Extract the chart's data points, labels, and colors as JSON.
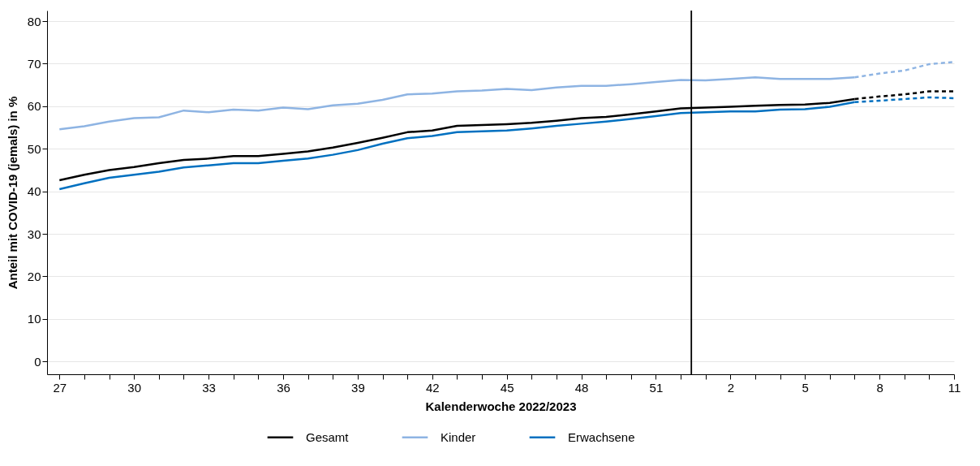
{
  "chart_data": {
    "type": "line",
    "xlabel": "Kalenderwoche 2022/2023",
    "ylabel": "Anteil mit COVID-19 (jemals) in %",
    "x": [
      "2022-07-07",
      "2022-07-14",
      "2022-07-21",
      "2022-07-28",
      "2022-08-04",
      "2022-08-11",
      "2022-08-18",
      "2022-08-25",
      "2022-09-01",
      "2022-09-08",
      "2022-09-15",
      "2022-09-22",
      "2022-09-29",
      "2022-10-06",
      "2022-10-13",
      "2022-10-20",
      "2022-10-27",
      "2022-11-03",
      "2022-11-10",
      "2022-11-17",
      "2022-11-24",
      "2022-12-01",
      "2022-12-08",
      "2022-12-15",
      "2022-12-22",
      "2022-12-29",
      "2023-01-05",
      "2023-01-12",
      "2023-01-19",
      "2023-01-26",
      "2023-02-02",
      "2023-02-09",
      "2023-02-16",
      "2023-02-23",
      "2023-03-02",
      "2023-03-09",
      "2023-03-16"
    ],
    "series": [
      {
        "name": "Gesamt",
        "color": "#000000",
        "line_style": "solid",
        "values": [
          42.6,
          43.9,
          45.0,
          45.7,
          46.6,
          47.4,
          47.7,
          48.3,
          48.3,
          48.8,
          49.4,
          50.3,
          51.4,
          52.6,
          53.9,
          54.3,
          55.4,
          55.6,
          55.8,
          56.1,
          56.6,
          57.2,
          57.5,
          58.1,
          58.8,
          59.5,
          59.7,
          59.9,
          60.1,
          60.3,
          60.4,
          60.8,
          61.7,
          null,
          null,
          null,
          null
        ]
      },
      {
        "name": "Kinder",
        "color": "#8eb4e3",
        "line_style": "solid",
        "values": [
          54.6,
          55.3,
          56.4,
          57.2,
          57.4,
          59.0,
          58.6,
          59.2,
          59.0,
          59.7,
          59.3,
          60.2,
          60.6,
          61.5,
          62.8,
          63.0,
          63.5,
          63.7,
          64.1,
          63.8,
          64.4,
          64.8,
          64.8,
          65.2,
          65.7,
          66.2,
          66.1,
          66.4,
          66.8,
          66.4,
          66.4,
          66.4,
          66.8,
          null,
          null,
          null,
          null
        ]
      },
      {
        "name": "Erwachsene",
        "color": "#0070c0",
        "line_style": "solid",
        "values": [
          40.5,
          41.9,
          43.2,
          43.9,
          44.6,
          45.6,
          46.1,
          46.6,
          46.6,
          47.2,
          47.7,
          48.6,
          49.7,
          51.2,
          52.5,
          53.0,
          53.9,
          54.1,
          54.3,
          54.8,
          55.4,
          55.9,
          56.4,
          57.0,
          57.7,
          58.4,
          58.6,
          58.8,
          58.8,
          59.2,
          59.3,
          59.9,
          61.0,
          null,
          null,
          null,
          null
        ]
      },
      {
        "color": "#000000",
        "line_style": "dashed",
        "values": [
          null,
          null,
          null,
          null,
          null,
          null,
          null,
          null,
          null,
          null,
          null,
          null,
          null,
          null,
          null,
          null,
          null,
          null,
          null,
          null,
          null,
          null,
          null,
          null,
          null,
          null,
          null,
          null,
          null,
          null,
          null,
          null,
          61.7,
          62.3,
          62.8,
          63.5,
          63.5
        ]
      },
      {
        "color": "#8eb4e3",
        "line_style": "dashed",
        "values": [
          null,
          null,
          null,
          null,
          null,
          null,
          null,
          null,
          null,
          null,
          null,
          null,
          null,
          null,
          null,
          null,
          null,
          null,
          null,
          null,
          null,
          null,
          null,
          null,
          null,
          null,
          null,
          null,
          null,
          null,
          null,
          null,
          66.8,
          67.7,
          68.4,
          69.9,
          70.4
        ]
      },
      {
        "color": "#0070c0",
        "line_style": "dashed",
        "values": [
          null,
          null,
          null,
          null,
          null,
          null,
          null,
          null,
          null,
          null,
          null,
          null,
          null,
          null,
          null,
          null,
          null,
          null,
          null,
          null,
          null,
          null,
          null,
          null,
          null,
          null,
          null,
          null,
          null,
          null,
          null,
          null,
          61.0,
          61.3,
          61.7,
          62.1,
          61.9
        ]
      }
    ],
    "xlim": [
      "2022-07-03T12:00",
      "2023-03-16"
    ],
    "xticks": [
      {
        "value": "2022-07-07",
        "label": "27"
      },
      {
        "value": "2022-07-14",
        "label": null
      },
      {
        "value": "2022-07-21",
        "label": null
      },
      {
        "value": "2022-07-28",
        "label": "30"
      },
      {
        "value": "2022-08-04",
        "label": null
      },
      {
        "value": "2022-08-11",
        "label": null
      },
      {
        "value": "2022-08-18",
        "label": "33"
      },
      {
        "value": "2022-08-25",
        "label": null
      },
      {
        "value": "2022-09-01",
        "label": null
      },
      {
        "value": "2022-09-08",
        "label": "36"
      },
      {
        "value": "2022-09-15",
        "label": null
      },
      {
        "value": "2022-09-22",
        "label": null
      },
      {
        "value": "2022-09-29",
        "label": "39"
      },
      {
        "value": "2022-10-06",
        "label": null
      },
      {
        "value": "2022-10-13",
        "label": null
      },
      {
        "value": "2022-10-20",
        "label": "42"
      },
      {
        "value": "2022-10-27",
        "label": null
      },
      {
        "value": "2022-11-03",
        "label": null
      },
      {
        "value": "2022-11-10",
        "label": "45"
      },
      {
        "value": "2022-11-17",
        "label": null
      },
      {
        "value": "2022-11-24",
        "label": null
      },
      {
        "value": "2022-12-01",
        "label": "48"
      },
      {
        "value": "2022-12-08",
        "label": null
      },
      {
        "value": "2022-12-15",
        "label": null
      },
      {
        "value": "2022-12-22",
        "label": "51"
      },
      {
        "value": "2022-12-29",
        "label": null
      },
      {
        "value": "2023-01-05",
        "label": null
      },
      {
        "value": "2023-01-12",
        "label": "2"
      },
      {
        "value": "2023-01-19",
        "label": null
      },
      {
        "value": "2023-01-26",
        "label": null
      },
      {
        "value": "2023-02-02",
        "label": "5"
      },
      {
        "value": "2023-02-09",
        "label": null
      },
      {
        "value": "2023-02-16",
        "label": null
      },
      {
        "value": "2023-02-23",
        "label": "8"
      },
      {
        "value": "2023-03-02",
        "label": null
      },
      {
        "value": "2023-03-09",
        "label": null
      },
      {
        "value": "2023-03-16",
        "label": "11"
      }
    ],
    "ylim": [
      -3,
      82.5
    ],
    "yticks": [
      0,
      10,
      20,
      30,
      40,
      50,
      60,
      70,
      80
    ],
    "grid": "y",
    "legend": "bottom",
    "ref_lines": [
      {
        "axis": "x",
        "value": "2023-01-01",
        "color": "#000000"
      }
    ]
  }
}
